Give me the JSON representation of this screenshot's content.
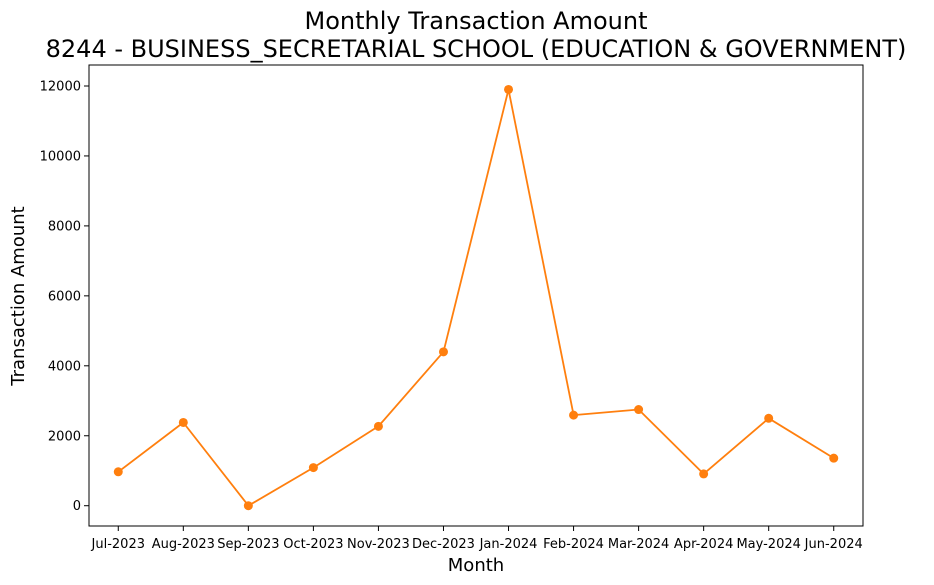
{
  "chart_data": {
    "type": "line",
    "title": "Monthly Transaction Amount",
    "subtitle": "8244 - BUSINESS_SECRETARIAL SCHOOL (EDUCATION & GOVERNMENT)",
    "xlabel": "Month",
    "ylabel": "Transaction Amount",
    "categories": [
      "Jul-2023",
      "Aug-2023",
      "Sep-2023",
      "Oct-2023",
      "Nov-2023",
      "Dec-2023",
      "Jan-2024",
      "Feb-2024",
      "Mar-2024",
      "Apr-2024",
      "May-2024",
      "Jun-2024"
    ],
    "series": [
      {
        "values": [
          970,
          2380,
          0,
          1090,
          2270,
          4400,
          11900,
          2590,
          2750,
          910,
          2500,
          1360
        ],
        "color": "#ff7f0e"
      }
    ],
    "ylim": [
      -580,
      12600
    ],
    "yticks": [
      0,
      2000,
      4000,
      6000,
      8000,
      10000,
      12000
    ],
    "ytick_labels": [
      "0",
      "2000",
      "4000",
      "6000",
      "8000",
      "10000",
      "12000"
    ],
    "grid": false,
    "marker": "circle"
  }
}
